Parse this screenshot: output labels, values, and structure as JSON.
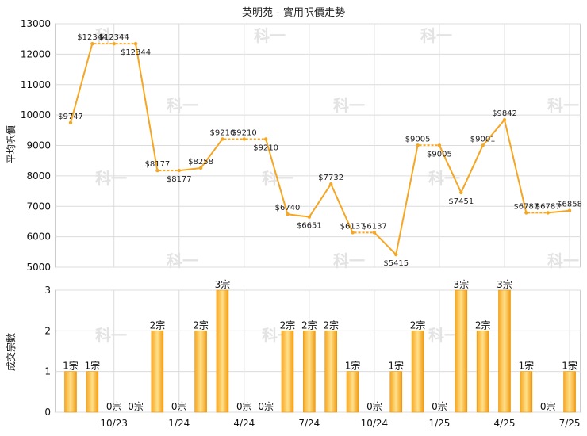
{
  "chart_data": [
    {
      "type": "line",
      "title": "英明苑 - 實用呎價走勢",
      "ylabel": "平均呎價",
      "ylim": [
        5000,
        13000
      ],
      "yticks": [
        5000,
        6000,
        7000,
        8000,
        9000,
        10000,
        11000,
        12000,
        13000
      ],
      "grid": true,
      "color": "#f5a623",
      "points": [
        {
          "i": 0,
          "value": 9747,
          "label": "$9747"
        },
        {
          "i": 1,
          "value": 12344,
          "label": "$12344"
        },
        {
          "i": 2,
          "value": 12344,
          "label": "$12344"
        },
        {
          "i": 3,
          "value": 12344,
          "label": "$12344"
        },
        {
          "i": 4,
          "value": 8177,
          "label": "$8177"
        },
        {
          "i": 5,
          "value": 8177,
          "label": "$8177"
        },
        {
          "i": 6,
          "value": 8258,
          "label": "$8258"
        },
        {
          "i": 7,
          "value": 9210,
          "label": "$9210"
        },
        {
          "i": 8,
          "value": 9210,
          "label": "$9210"
        },
        {
          "i": 9,
          "value": 9210,
          "label": "$9210"
        },
        {
          "i": 10,
          "value": 6740,
          "label": "$6740"
        },
        {
          "i": 11,
          "value": 6651,
          "label": "$6651"
        },
        {
          "i": 12,
          "value": 7732,
          "label": "$7732"
        },
        {
          "i": 13,
          "value": 6137,
          "label": "$6137"
        },
        {
          "i": 14,
          "value": 6137,
          "label": "$6137"
        },
        {
          "i": 15,
          "value": 5415,
          "label": "$5415"
        },
        {
          "i": 16,
          "value": 9005,
          "label": "$9005"
        },
        {
          "i": 17,
          "value": 9005,
          "label": "$9005"
        },
        {
          "i": 18,
          "value": 7451,
          "label": "$7451"
        },
        {
          "i": 19,
          "value": 9001,
          "label": "$9001"
        },
        {
          "i": 20,
          "value": 9842,
          "label": "$9842"
        },
        {
          "i": 21,
          "value": 6787,
          "label": "$6787"
        },
        {
          "i": 22,
          "value": 6787,
          "label": "$6787"
        },
        {
          "i": 23,
          "value": 6858,
          "label": "$6858"
        }
      ]
    },
    {
      "type": "bar",
      "ylabel": "成交宗數",
      "ylim": [
        0,
        3
      ],
      "yticks": [
        0,
        1,
        2,
        3
      ],
      "grid": true,
      "color": "#f5a623",
      "values": [
        1,
        1,
        0,
        0,
        2,
        0,
        2,
        3,
        0,
        0,
        2,
        2,
        2,
        1,
        0,
        1,
        2,
        0,
        3,
        2,
        3,
        1,
        0,
        1
      ],
      "value_labels": [
        "1宗",
        "1宗",
        "0宗",
        "0宗",
        "2宗",
        "0宗",
        "2宗",
        "3宗",
        "0宗",
        "0宗",
        "2宗",
        "2宗",
        "2宗",
        "1宗",
        "0宗",
        "1宗",
        "2宗",
        "0宗",
        "3宗",
        "2宗",
        "3宗",
        "1宗",
        "0宗",
        "1宗"
      ],
      "x_ticks": [
        {
          "at": 2,
          "label": "10/23"
        },
        {
          "at": 5,
          "label": "1/24"
        },
        {
          "at": 8,
          "label": "4/24"
        },
        {
          "at": 11,
          "label": "7/24"
        },
        {
          "at": 14,
          "label": "10/24"
        },
        {
          "at": 17,
          "label": "1/25"
        },
        {
          "at": 20,
          "label": "4/25"
        },
        {
          "at": 23,
          "label": "7/25"
        }
      ]
    }
  ],
  "watermark": "科一"
}
